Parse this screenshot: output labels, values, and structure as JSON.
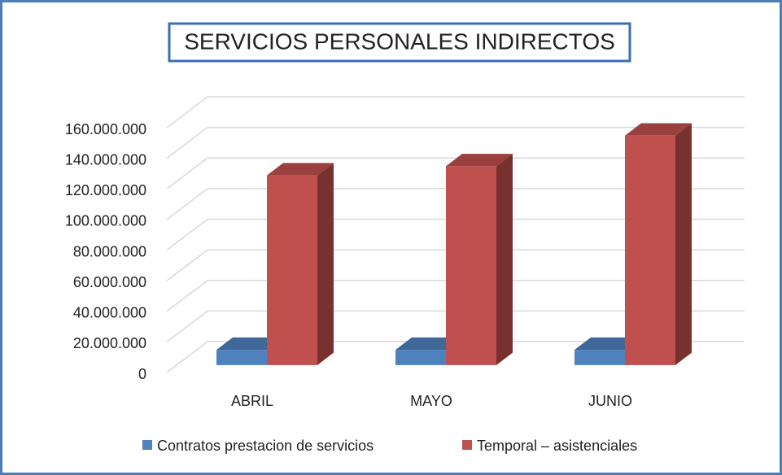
{
  "chart_data": {
    "type": "bar3d",
    "title": "SERVICIOS PERSONALES INDIRECTOS",
    "categories": [
      "ABRIL",
      "MAYO",
      "JUNIO"
    ],
    "series": [
      {
        "name": "Contratos prestacion de servicios",
        "color": "#4f81bd",
        "values": [
          10000000,
          10000000,
          10000000
        ]
      },
      {
        "name": "Temporal – asistenciales",
        "color": "#c0504d",
        "values": [
          124000000,
          130000000,
          150000000
        ]
      }
    ],
    "ylim": [
      0,
      160000000
    ],
    "yticks": [
      0,
      {
        "value": 20000000,
        "label": "20.000.000"
      },
      {
        "value": 40000000,
        "label": "40.000.000"
      },
      {
        "value": 60000000,
        "label": "60.000.000"
      },
      {
        "value": 80000000,
        "label": "80.000.000"
      },
      {
        "value": 100000000,
        "label": "100.000.000"
      },
      {
        "value": 120000000,
        "label": "120.000.000"
      },
      {
        "value": 140000000,
        "label": "140.000.000"
      },
      {
        "value": 160000000,
        "label": "160.000.000"
      }
    ],
    "grid": true,
    "legend": "bottom"
  }
}
